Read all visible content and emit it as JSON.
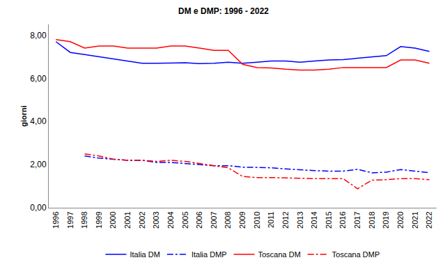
{
  "chart_data": {
    "type": "line",
    "title": "DM e DMP: 1996 - 2022",
    "y_label": "giorni",
    "categories": [
      "1996",
      "1997",
      "1998",
      "1999",
      "2000",
      "2001",
      "2002",
      "2003",
      "2004",
      "2005",
      "2006",
      "2007",
      "2008",
      "2009",
      "2010",
      "2011",
      "2012",
      "2013",
      "2014",
      "2015",
      "2016",
      "2017",
      "2018",
      "2019",
      "2020",
      "2021",
      "2022"
    ],
    "series": [
      {
        "name": "Italia DM",
        "color": "#0000ff",
        "line_style": "solid",
        "values": [
          7.7,
          7.2,
          7.1,
          7.0,
          6.9,
          6.8,
          6.7,
          6.7,
          6.7,
          6.72,
          6.68,
          6.7,
          6.75,
          6.7,
          6.75,
          6.8,
          6.8,
          6.75,
          6.8,
          6.85,
          6.87,
          6.93,
          7.0,
          7.05,
          7.47,
          7.4,
          7.25
        ]
      },
      {
        "name": "Italia DMP",
        "color": "#0000ff",
        "line_style": "dashdot",
        "values": [
          null,
          null,
          2.4,
          2.3,
          2.25,
          2.2,
          2.2,
          2.1,
          2.1,
          2.05,
          2.0,
          1.95,
          1.95,
          1.88,
          1.87,
          1.85,
          1.8,
          1.75,
          1.72,
          1.7,
          1.7,
          1.78,
          1.62,
          1.65,
          1.77,
          1.7,
          1.62
        ]
      },
      {
        "name": "Toscana DM",
        "color": "#ff0000",
        "line_style": "solid",
        "values": [
          7.8,
          7.7,
          7.4,
          7.5,
          7.5,
          7.4,
          7.4,
          7.4,
          7.5,
          7.5,
          7.4,
          7.3,
          7.3,
          6.65,
          6.5,
          6.48,
          6.42,
          6.38,
          6.38,
          6.42,
          6.5,
          6.5,
          6.5,
          6.5,
          6.85,
          6.85,
          6.7
        ]
      },
      {
        "name": "Toscana DMP",
        "color": "#ff0000",
        "line_style": "dashdot",
        "values": [
          null,
          null,
          2.5,
          2.4,
          2.25,
          2.2,
          2.2,
          2.15,
          2.2,
          2.15,
          2.05,
          1.95,
          1.85,
          1.45,
          1.4,
          1.4,
          1.38,
          1.38,
          1.35,
          1.35,
          1.35,
          0.88,
          1.28,
          1.3,
          1.35,
          1.35,
          1.3
        ]
      }
    ],
    "ylim": [
      0,
      8.5
    ],
    "yticks": [
      {
        "value": 0,
        "label": "0,00"
      },
      {
        "value": 2,
        "label": "2,00"
      },
      {
        "value": 4,
        "label": "4,00"
      },
      {
        "value": 6,
        "label": "6,00"
      },
      {
        "value": 8,
        "label": "8,00"
      }
    ],
    "grid": false,
    "legend": "bottom"
  }
}
